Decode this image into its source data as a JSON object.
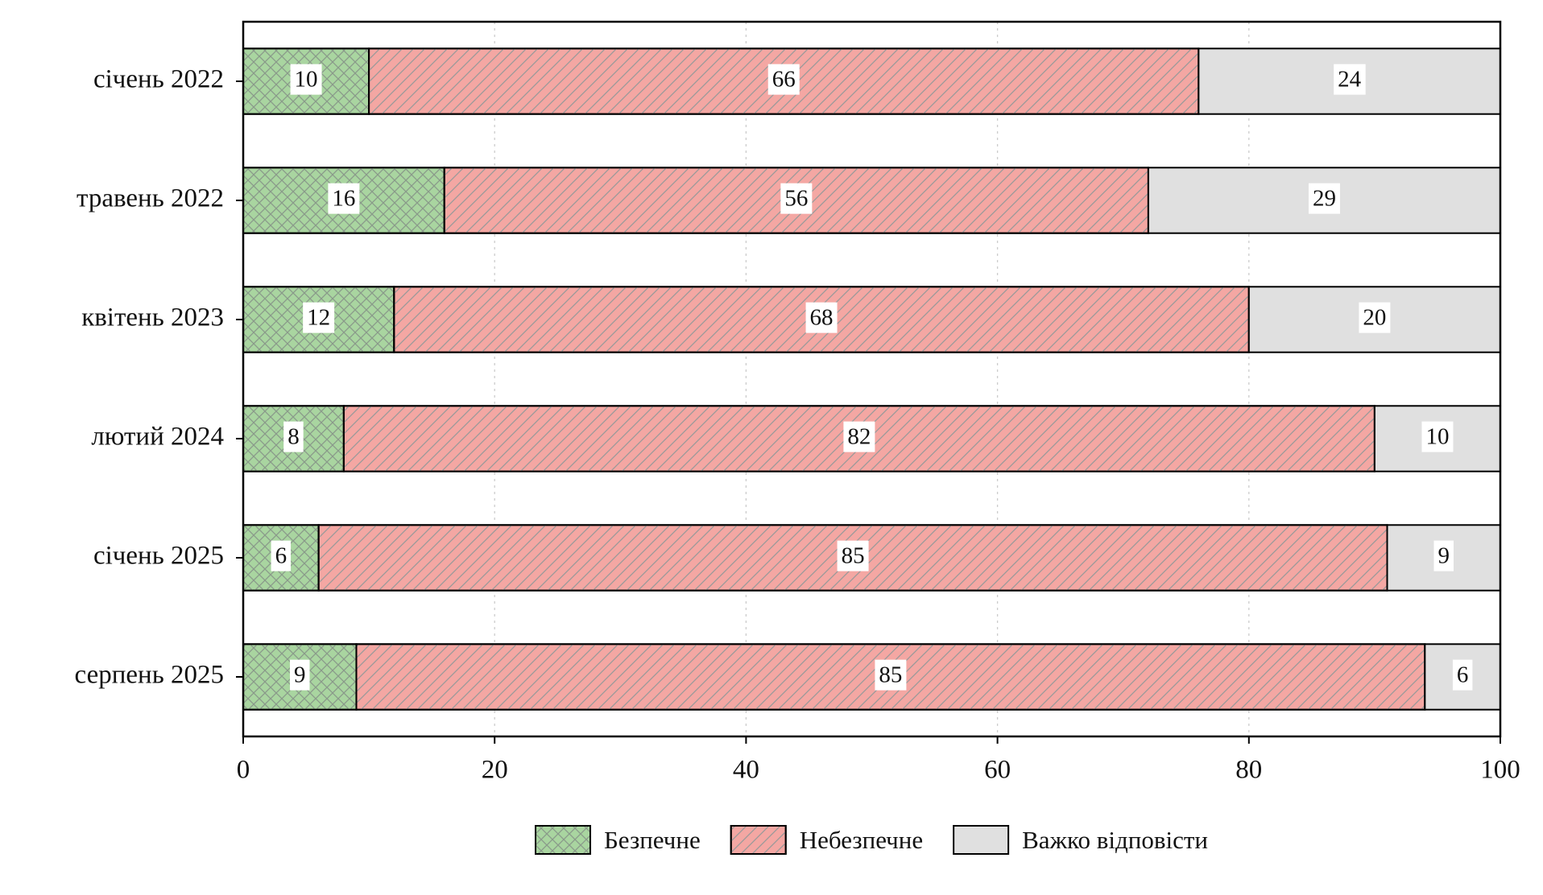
{
  "chart_data": {
    "type": "stacked_barh",
    "categories": [
      "січень 2022",
      "травень 2022",
      "квітень 2023",
      "лютий 2024",
      "січень 2025",
      "серпень 2025"
    ],
    "series": [
      {
        "name": "Безпечне",
        "color": "#a9d5a0",
        "hatch": "cross",
        "values": [
          10,
          16,
          12,
          8,
          6,
          9
        ]
      },
      {
        "name": "Небезпечне",
        "color": "#f4a7a3",
        "hatch": "diagonal",
        "values": [
          66,
          56,
          68,
          82,
          85,
          85
        ]
      },
      {
        "name": "Важко відповісти",
        "color": "#e0e0e0",
        "hatch": "none",
        "values": [
          24,
          29,
          20,
          10,
          9,
          6
        ]
      }
    ],
    "xlim": [
      0,
      100
    ],
    "xticks": [
      0,
      20,
      40,
      60,
      80,
      100
    ],
    "grid": true,
    "legend": "bottom"
  }
}
